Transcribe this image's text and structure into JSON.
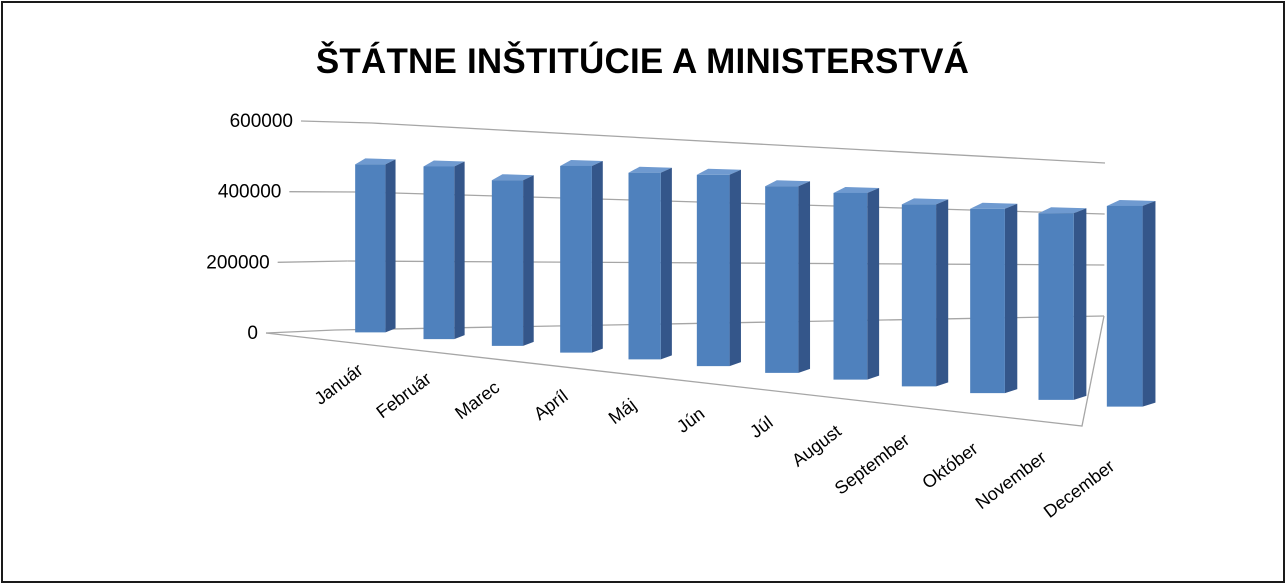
{
  "chart_data": {
    "type": "bar",
    "style": "3d-column",
    "title": "ŠTÁTNE INŠTITÚCIE A MINISTERSTVÁ",
    "xlabel": "",
    "ylabel": "",
    "ylim": [
      0,
      600000
    ],
    "yticks": [
      "0",
      "200000",
      "400000",
      "600000"
    ],
    "grid": true,
    "categories": [
      "Január",
      "Február",
      "Marec",
      "Apríl",
      "Máj",
      "Jún",
      "Júl",
      "August",
      "September",
      "Október",
      "November",
      "December"
    ],
    "values": [
      360000,
      370000,
      355000,
      400000,
      400000,
      410000,
      400000,
      400000,
      390000,
      395000,
      400000,
      430000
    ],
    "colors": {
      "front": "#4f81bd",
      "top": "#6f9ad0",
      "side": "#34568a",
      "grid": "#a6a6a6"
    }
  }
}
